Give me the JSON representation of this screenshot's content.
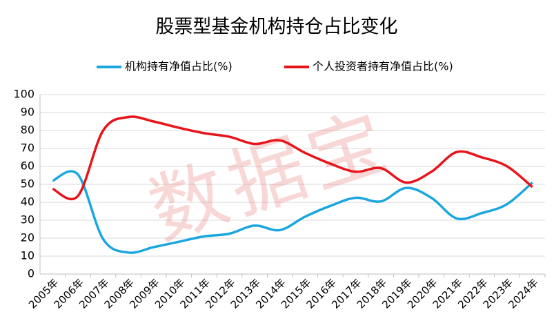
{
  "chart_data": {
    "type": "line",
    "title": "股票型基金机构持仓占比变化",
    "watermark": "数据宝",
    "categories": [
      "2005年",
      "2006年",
      "2007年",
      "2008年",
      "2009年",
      "2010年",
      "2011年",
      "2012年",
      "2013年",
      "2014年",
      "2015年",
      "2016年",
      "2017年",
      "2018年",
      "2019年",
      "2020年",
      "2021年",
      "2022年",
      "2023年",
      "2024年"
    ],
    "series": [
      {
        "name": "机构持有净值占比(%)",
        "color": "#1aa7e0",
        "values": [
          52,
          55.5,
          19.5,
          12,
          15,
          18,
          21,
          22.5,
          27,
          24.5,
          32,
          38,
          42.5,
          40.5,
          48,
          42.5,
          31,
          34,
          39,
          51
        ]
      },
      {
        "name": "个人投资者持有净值占比(%)",
        "color": "#e8141a",
        "values": [
          47.5,
          43.5,
          80,
          87.5,
          85,
          81.5,
          78.5,
          76.5,
          72.5,
          74.5,
          67.5,
          61.5,
          57,
          59,
          51,
          57,
          68,
          65,
          60,
          48.5
        ]
      }
    ],
    "ylim": [
      0,
      100
    ],
    "yticks": [
      0,
      10,
      20,
      30,
      40,
      50,
      60,
      70,
      80,
      90,
      100
    ],
    "grid": true
  }
}
